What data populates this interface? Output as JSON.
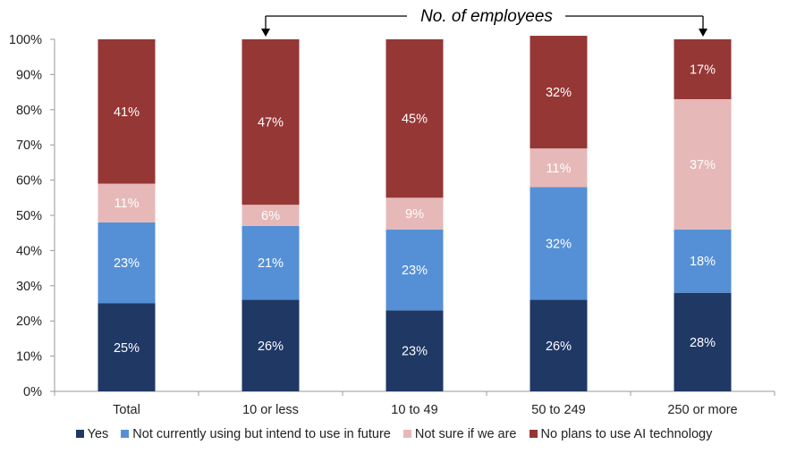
{
  "chart_data": {
    "type": "bar",
    "stacked": true,
    "annotation": "No. of employees",
    "categories": [
      "Total",
      "10 or less",
      "10 to 49",
      "50 to 249",
      "250 or more"
    ],
    "series": [
      {
        "name": "Yes",
        "color": "#1f3864",
        "values": [
          25,
          26,
          23,
          26,
          28
        ]
      },
      {
        "name": "Not currently using but intend to use in future",
        "color": "#5590d6",
        "values": [
          23,
          21,
          23,
          32,
          18
        ]
      },
      {
        "name": "Not sure if we are",
        "color": "#e6b8b7",
        "values": [
          11,
          6,
          9,
          11,
          37
        ]
      },
      {
        "name": "No plans to use AI technology",
        "color": "#953735",
        "values": [
          41,
          47,
          45,
          32,
          17
        ]
      }
    ],
    "ylim": [
      0,
      100
    ],
    "yticks": [
      "0%",
      "10%",
      "20%",
      "30%",
      "40%",
      "50%",
      "60%",
      "70%",
      "80%",
      "90%",
      "100%"
    ],
    "grid": false,
    "legend_position": "bottom"
  }
}
